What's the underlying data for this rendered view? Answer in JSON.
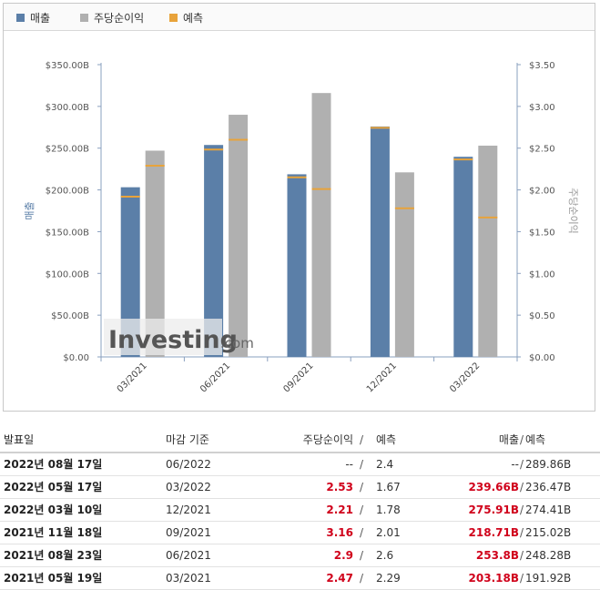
{
  "legend": {
    "revenue": {
      "label": "매출",
      "color": "#5b7fa8"
    },
    "eps": {
      "label": "주당순이익",
      "color": "#b0b0b0"
    },
    "forecast": {
      "label": "예측",
      "color": "#e8a33b"
    }
  },
  "chart_data": {
    "type": "bar",
    "categories": [
      "03/2021",
      "06/2021",
      "09/2021",
      "12/2021",
      "03/2022"
    ],
    "series": [
      {
        "name": "매출",
        "axis": "left",
        "values": [
          203.18,
          253.8,
          218.71,
          275.91,
          239.66
        ],
        "color": "#5b7fa8"
      },
      {
        "name": "주당순이익",
        "axis": "right",
        "values": [
          2.47,
          2.9,
          3.16,
          2.21,
          2.53
        ],
        "color": "#b0b0b0"
      }
    ],
    "forecast": {
      "name": "예측",
      "revenue": [
        191.92,
        248.28,
        215.02,
        274.41,
        236.47
      ],
      "eps": [
        2.29,
        2.6,
        2.01,
        1.78,
        1.67
      ],
      "color": "#e8a33b"
    },
    "ylabel": "매출",
    "y2label": "주당순이익",
    "ylim": [
      0,
      350
    ],
    "y2lim": [
      0,
      3.5
    ],
    "yticks": [
      "$0.00",
      "$50.00B",
      "$100.00B",
      "$150.00B",
      "$200.00B",
      "$250.00B",
      "$300.00B",
      "$350.00B"
    ],
    "y2ticks": [
      "$0.00",
      "$0.50",
      "$1.00",
      "$1.50",
      "$2.00",
      "$2.50",
      "$3.00",
      "$3.50"
    ],
    "grid": false,
    "legend_position": "top-left",
    "watermark": "Investing.com"
  },
  "table": {
    "headers": {
      "date": "발표일",
      "period": "마감 기준",
      "eps": "주당순이익",
      "eps_forecast": "예측",
      "revenue": "매출",
      "revenue_forecast": "예측",
      "slash": "/"
    },
    "rows": [
      {
        "date": "2022년 08월 17일",
        "period": "06/2022",
        "eps": "--",
        "eps_forecast": "2.4",
        "revenue": "--",
        "revenue_forecast": "289.86B",
        "highlight": false
      },
      {
        "date": "2022년 05월 17일",
        "period": "03/2022",
        "eps": "2.53",
        "eps_forecast": "1.67",
        "revenue": "239.66B",
        "revenue_forecast": "236.47B",
        "highlight": true
      },
      {
        "date": "2022년 03월 10일",
        "period": "12/2021",
        "eps": "2.21",
        "eps_forecast": "1.78",
        "revenue": "275.91B",
        "revenue_forecast": "274.41B",
        "highlight": true
      },
      {
        "date": "2021년 11월 18일",
        "period": "09/2021",
        "eps": "3.16",
        "eps_forecast": "2.01",
        "revenue": "218.71B",
        "revenue_forecast": "215.02B",
        "highlight": true
      },
      {
        "date": "2021년 08월 23일",
        "period": "06/2021",
        "eps": "2.9",
        "eps_forecast": "2.6",
        "revenue": "253.8B",
        "revenue_forecast": "248.28B",
        "highlight": true
      },
      {
        "date": "2021년 05월 19일",
        "period": "03/2021",
        "eps": "2.47",
        "eps_forecast": "2.29",
        "revenue": "203.18B",
        "revenue_forecast": "191.92B",
        "highlight": true
      }
    ]
  }
}
